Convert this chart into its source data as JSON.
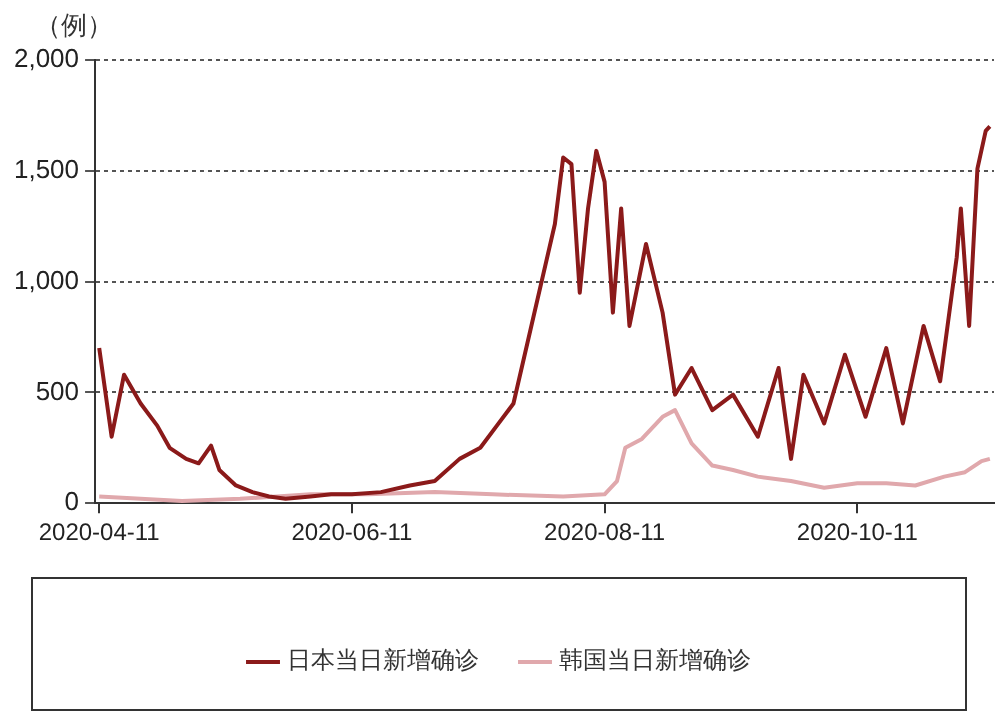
{
  "chart_data": {
    "type": "line",
    "ylabel": "（例）",
    "xlim": [
      "2020-04-10",
      "2020-11-13"
    ],
    "xticks": [
      "2020-04-11",
      "2020-06-11",
      "2020-08-11",
      "2020-10-11"
    ],
    "ylim": [
      0,
      2000
    ],
    "yticks": [
      {
        "value": 0,
        "label": "0"
      },
      {
        "value": 500,
        "label": "500"
      },
      {
        "value": 1000,
        "label": "1,000"
      },
      {
        "value": 1500,
        "label": "1,500"
      },
      {
        "value": 2000,
        "label": "2,000"
      }
    ],
    "grid": "y",
    "legend": "bottom",
    "marker": "none",
    "line_style": "solid",
    "series": [
      {
        "name": "日本当日新增确诊",
        "color": "#8b1a1a",
        "x": [
          "2020-04-11",
          "2020-04-14",
          "2020-04-17",
          "2020-04-21",
          "2020-04-25",
          "2020-04-28",
          "2020-05-02",
          "2020-05-05",
          "2020-05-08",
          "2020-05-10",
          "2020-05-14",
          "2020-05-18",
          "2020-05-22",
          "2020-05-26",
          "2020-06-01",
          "2020-06-06",
          "2020-06-11",
          "2020-06-18",
          "2020-06-25",
          "2020-07-01",
          "2020-07-07",
          "2020-07-12",
          "2020-07-16",
          "2020-07-20",
          "2020-07-30",
          "2020-08-01",
          "2020-08-03",
          "2020-08-05",
          "2020-08-07",
          "2020-08-09",
          "2020-08-11",
          "2020-08-13",
          "2020-08-15",
          "2020-08-17",
          "2020-08-21",
          "2020-08-25",
          "2020-08-28",
          "2020-09-01",
          "2020-09-06",
          "2020-09-11",
          "2020-09-17",
          "2020-09-22",
          "2020-09-25",
          "2020-09-28",
          "2020-10-03",
          "2020-10-08",
          "2020-10-13",
          "2020-10-18",
          "2020-10-22",
          "2020-10-27",
          "2020-10-31",
          "2020-11-04",
          "2020-11-05",
          "2020-11-07",
          "2020-11-09",
          "2020-11-11",
          "2020-11-12"
        ],
        "values": [
          700,
          300,
          580,
          450,
          350,
          250,
          200,
          180,
          260,
          150,
          80,
          50,
          30,
          20,
          30,
          40,
          40,
          50,
          80,
          100,
          200,
          250,
          350,
          450,
          1260,
          1560,
          1530,
          950,
          1330,
          1590,
          1450,
          860,
          1330,
          800,
          1170,
          860,
          490,
          610,
          420,
          490,
          300,
          610,
          200,
          580,
          360,
          670,
          390,
          700,
          360,
          800,
          550,
          1110,
          1330,
          800,
          1510,
          1680,
          1700
        ]
      },
      {
        "name": "韩国当日新增确诊",
        "color": "#e0a8ac",
        "x": [
          "2020-04-11",
          "2020-05-01",
          "2020-05-15",
          "2020-06-01",
          "2020-06-15",
          "2020-07-01",
          "2020-07-15",
          "2020-08-01",
          "2020-08-11",
          "2020-08-14",
          "2020-08-16",
          "2020-08-20",
          "2020-08-25",
          "2020-08-28",
          "2020-09-01",
          "2020-09-06",
          "2020-09-11",
          "2020-09-17",
          "2020-09-25",
          "2020-10-03",
          "2020-10-11",
          "2020-10-18",
          "2020-10-25",
          "2020-11-01",
          "2020-11-06",
          "2020-11-10",
          "2020-11-12"
        ],
        "values": [
          30,
          10,
          20,
          40,
          40,
          50,
          40,
          30,
          40,
          100,
          250,
          290,
          390,
          420,
          270,
          170,
          150,
          120,
          100,
          70,
          90,
          90,
          80,
          120,
          140,
          190,
          200
        ]
      }
    ]
  }
}
